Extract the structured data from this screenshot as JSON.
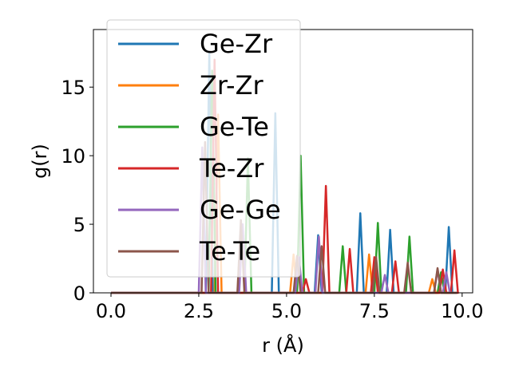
{
  "chart_data": {
    "type": "line",
    "title": "",
    "xlabel": "r (Å)",
    "ylabel": "g(r)",
    "xlim": [
      -0.5,
      10.3
    ],
    "ylim": [
      0,
      19.2
    ],
    "xticks": [
      0.0,
      2.5,
      5.0,
      7.5,
      10.0
    ],
    "xtick_labels": [
      "0.0",
      "2.5",
      "5.0",
      "7.5",
      "10.0"
    ],
    "yticks": [
      0,
      5,
      10,
      15
    ],
    "ytick_labels": [
      "0",
      "5",
      "10",
      "15"
    ],
    "grid": false,
    "legend": {
      "position": "upper-left",
      "entries": [
        "Ge-Zr",
        "Zr-Zr",
        "Ge-Te",
        "Te-Zr",
        "Ge-Ge",
        "Te-Te"
      ]
    },
    "series": [
      {
        "name": "Ge-Zr",
        "color": "#1f77b4",
        "peaks": [
          [
            2.8,
            17.5
          ],
          [
            4.68,
            13.1
          ],
          [
            5.9,
            4.2
          ],
          [
            7.1,
            5.8
          ],
          [
            7.95,
            4.6
          ],
          [
            9.62,
            4.8
          ]
        ]
      },
      {
        "name": "Zr-Zr",
        "color": "#ff7f0e",
        "peaks": [
          [
            3.05,
            13.0
          ],
          [
            5.2,
            2.8
          ],
          [
            7.35,
            2.8
          ],
          [
            9.15,
            1.0
          ]
        ]
      },
      {
        "name": "Ge-Te",
        "color": "#2ca02c",
        "peaks": [
          [
            2.88,
            16.2
          ],
          [
            3.9,
            9.8
          ],
          [
            5.4,
            10.0
          ],
          [
            6.6,
            3.4
          ],
          [
            7.6,
            5.1
          ],
          [
            8.5,
            4.1
          ],
          [
            9.4,
            1.5
          ]
        ]
      },
      {
        "name": "Te-Zr",
        "color": "#d62728",
        "peaks": [
          [
            2.95,
            17.0
          ],
          [
            5.55,
            1.0
          ],
          [
            6.12,
            7.8
          ],
          [
            6.8,
            3.2
          ],
          [
            7.5,
            2.6
          ],
          [
            8.1,
            2.3
          ],
          [
            9.45,
            1.7
          ],
          [
            9.78,
            3.1
          ]
        ]
      },
      {
        "name": "Ge-Ge",
        "color": "#9467bd",
        "peaks": [
          [
            2.6,
            10.6
          ],
          [
            3.75,
            5.0
          ],
          [
            5.35,
            2.6
          ],
          [
            5.92,
            4.1
          ],
          [
            7.8,
            1.3
          ],
          [
            9.3,
            1.7
          ],
          [
            9.55,
            1.5
          ]
        ]
      },
      {
        "name": "Te-Te",
        "color": "#8c564b",
        "peaks": [
          [
            2.68,
            11.0
          ],
          [
            3.7,
            5.3
          ],
          [
            5.3,
            2.7
          ],
          [
            6.0,
            3.4
          ],
          [
            7.55,
            2.6
          ],
          [
            8.45,
            2.2
          ],
          [
            9.3,
            1.8
          ]
        ]
      }
    ]
  }
}
